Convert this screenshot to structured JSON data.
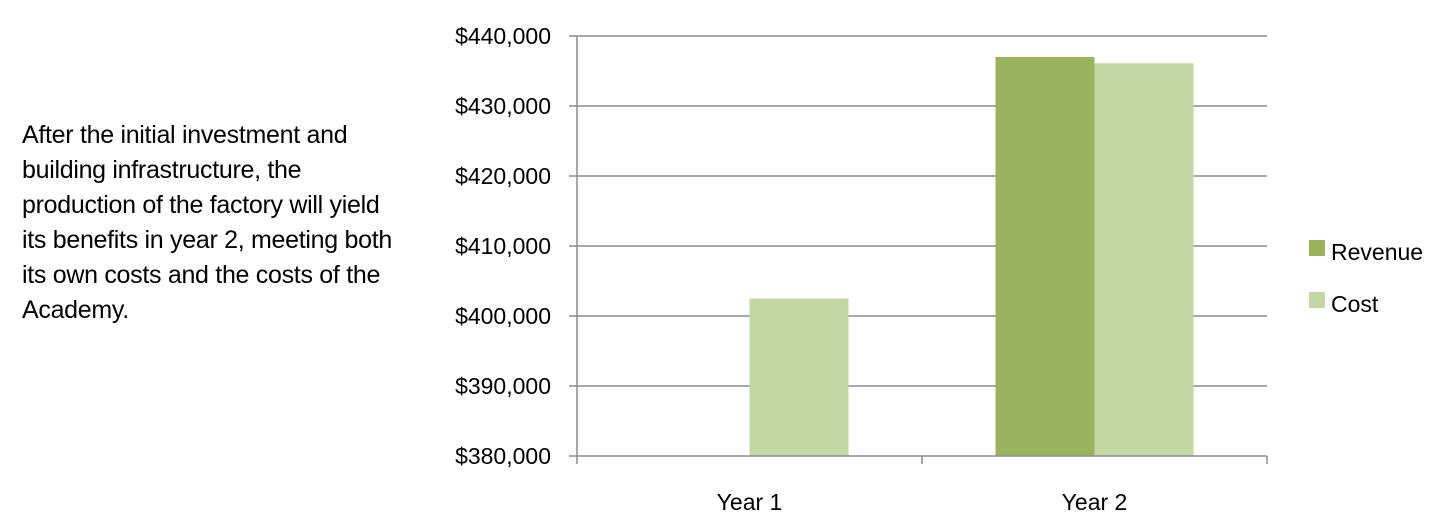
{
  "description": "After the initial investment and building infrastructure, the production of the factory will yield its benefits in year 2, meeting both its own costs and the costs of the Academy.",
  "chart_data": {
    "type": "bar",
    "categories": [
      "Year 1",
      "Year 2"
    ],
    "series": [
      {
        "name": "Revenue",
        "color": "#9bb35f",
        "values": [
          null,
          437000
        ]
      },
      {
        "name": "Cost",
        "color": "#c4d6a2",
        "values": [
          402500,
          436100
        ]
      }
    ],
    "ylim": [
      380000,
      440000
    ],
    "yticks": [
      380000,
      390000,
      400000,
      410000,
      420000,
      430000,
      440000
    ],
    "ytick_labels": [
      "$380,000",
      "$390,000",
      "$400,000",
      "$410,000",
      "$420,000",
      "$430,000",
      "$440,000"
    ],
    "grid": true,
    "legend": "right",
    "title": "",
    "xlabel": "",
    "ylabel": ""
  }
}
